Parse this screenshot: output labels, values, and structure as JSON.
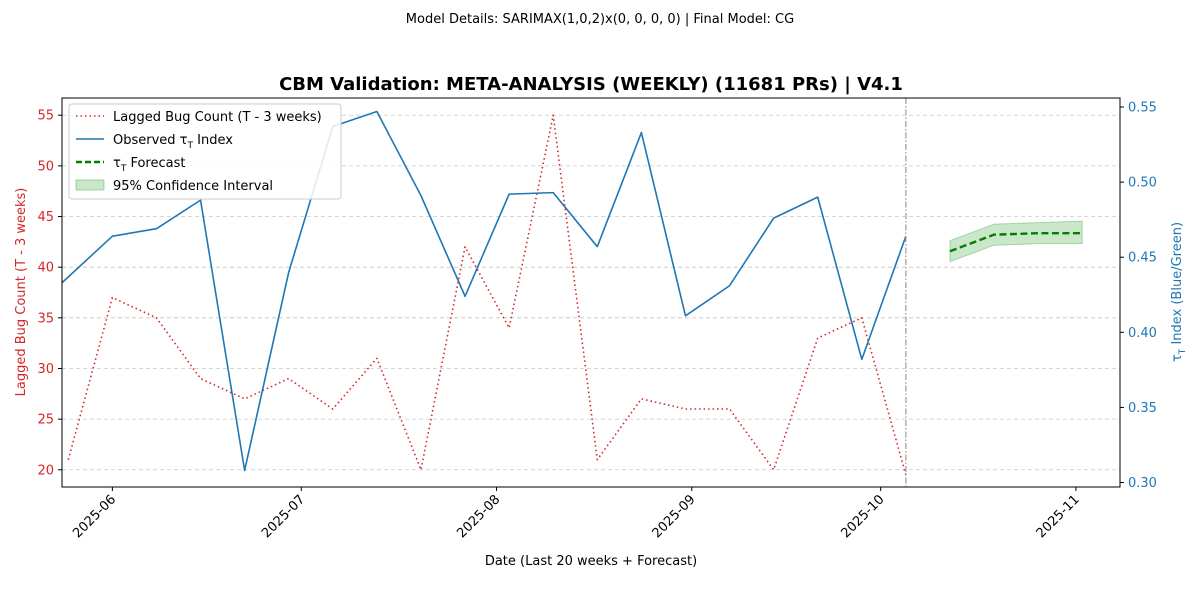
{
  "figure": {
    "suptitle": "Model Details: SARIMAX(1,0,2)x(0, 0, 0, 0) | Final Model: CG",
    "title": "CBM Validation: META-ANALYSIS (WEEKLY) (11681 PRs) | V4.1"
  },
  "chart_data": {
    "type": "line",
    "xlabel": "Date (Last 20 weeks + Forecast)",
    "ylabel_left": "Lagged Bug Count (T - 3 weeks)",
    "ylabel_right": "τ",
    "ylabel_right_sub": "T",
    "ylabel_right_suffix": " Index (Blue/Green)",
    "xlim": [
      "2025-05-24",
      "2025-11-08"
    ],
    "ylim_left": [
      18.3,
      56.7
    ],
    "ylim_right": [
      0.297,
      0.556
    ],
    "x_ticks": [
      "2025-06-01",
      "2025-07-01",
      "2025-08-01",
      "2025-09-01",
      "2025-10-01",
      "2025-11-01"
    ],
    "x_tick_labels": [
      "2025-06",
      "2025-07",
      "2025-08",
      "2025-09",
      "2025-10",
      "2025-11"
    ],
    "y_ticks_left": [
      20,
      25,
      30,
      35,
      40,
      45,
      50,
      55
    ],
    "y_ticks_right": [
      0.3,
      0.35,
      0.4,
      0.45,
      0.5,
      0.55
    ],
    "y_tick_labels_right": [
      "0.30",
      "0.35",
      "0.40",
      "0.45",
      "0.50",
      "0.55"
    ],
    "grid": true,
    "legend_position": "top-left",
    "vline_date": "2025-10-05",
    "series": [
      {
        "key": "lagged",
        "name": "Lagged Bug Count (T - 3 weeks)",
        "axis": "left",
        "style": "dotted",
        "color": "#d62728",
        "x": [
          "2025-05-25",
          "2025-06-01",
          "2025-06-08",
          "2025-06-15",
          "2025-06-22",
          "2025-06-29",
          "2025-07-06",
          "2025-07-13",
          "2025-07-20",
          "2025-07-27",
          "2025-08-03",
          "2025-08-10",
          "2025-08-17",
          "2025-08-24",
          "2025-08-31",
          "2025-09-07",
          "2025-09-14",
          "2025-09-21",
          "2025-09-28",
          "2025-10-05"
        ],
        "y": [
          21,
          37,
          35,
          29,
          27,
          29,
          26,
          31,
          20,
          42,
          34,
          55,
          21,
          27,
          26,
          26,
          20,
          33,
          35,
          19.5
        ]
      },
      {
        "key": "observed",
        "name": "Observed τ",
        "name_sub": "T",
        "name_suffix": " Index",
        "axis": "right",
        "style": "solid",
        "color": "#1f77b4",
        "x": [
          "2025-05-24",
          "2025-06-01",
          "2025-06-08",
          "2025-06-15",
          "2025-06-22",
          "2025-06-29",
          "2025-07-06",
          "2025-07-13",
          "2025-07-20",
          "2025-07-27",
          "2025-08-03",
          "2025-08-10",
          "2025-08-17",
          "2025-08-24",
          "2025-08-31",
          "2025-09-07",
          "2025-09-14",
          "2025-09-21",
          "2025-09-28",
          "2025-10-05"
        ],
        "y": [
          0.433,
          0.464,
          0.469,
          0.488,
          0.308,
          0.44,
          0.537,
          0.547,
          0.491,
          0.424,
          0.492,
          0.493,
          0.457,
          0.533,
          0.411,
          0.431,
          0.476,
          0.49,
          0.382,
          0.464
        ]
      },
      {
        "key": "forecast",
        "name": "τ",
        "name_sub": "T",
        "name_suffix": " Forecast",
        "axis": "right",
        "style": "dashed",
        "color": "#008000",
        "x": [
          "2025-10-12",
          "2025-10-19",
          "2025-10-26",
          "2025-11-02"
        ],
        "y": [
          0.454,
          0.465,
          0.466,
          0.466
        ]
      }
    ],
    "confidence_interval": {
      "name": "95% Confidence Interval",
      "axis": "right",
      "color": "#2ca02c",
      "x": [
        "2025-10-12",
        "2025-10-19",
        "2025-10-26",
        "2025-11-02"
      ],
      "lower": [
        0.447,
        0.458,
        0.459,
        0.459
      ],
      "upper": [
        0.461,
        0.472,
        0.473,
        0.474
      ]
    }
  }
}
